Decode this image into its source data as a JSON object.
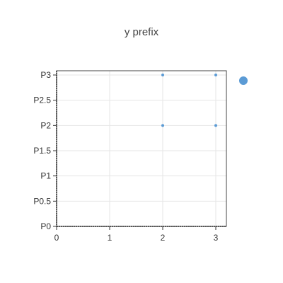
{
  "chart_data": {
    "type": "scatter",
    "title": "y prefix",
    "xlabel": "",
    "ylabel": "",
    "xlim": [
      0,
      3.2
    ],
    "ylim": [
      0,
      3
    ],
    "x_ticks": [
      0,
      1,
      2,
      3
    ],
    "y_ticks": [
      0,
      0.5,
      1,
      1.5,
      2,
      2.5,
      3
    ],
    "y_tick_labels": [
      "P0",
      "P0.5",
      "P1",
      "P1.5",
      "P2",
      "P2.5",
      "P3"
    ],
    "grid": true,
    "legend_position": "right",
    "series": [
      {
        "color": "#5b9bd5",
        "points": [
          {
            "x": 2,
            "y": 3
          },
          {
            "x": 3,
            "y": 3
          },
          {
            "x": 2,
            "y": 2
          },
          {
            "x": 3,
            "y": 2
          }
        ]
      }
    ]
  }
}
